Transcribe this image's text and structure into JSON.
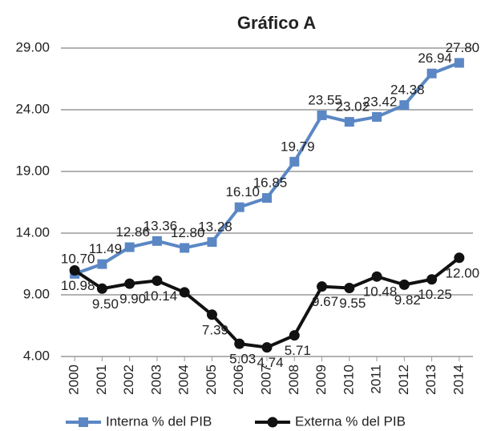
{
  "chart_data": {
    "type": "line",
    "title": "Gráfico A",
    "categories": [
      "2000",
      "2001",
      "2002",
      "2003",
      "2004",
      "2005",
      "2006",
      "2007",
      "2008",
      "2009",
      "2010",
      "2011",
      "2012",
      "2013",
      "2014"
    ],
    "series": [
      {
        "name": "Interna % del PIB",
        "color": "#5b87c4",
        "values": [
          10.7,
          11.49,
          12.86,
          13.36,
          12.8,
          13.28,
          16.1,
          16.85,
          19.79,
          23.55,
          23.02,
          23.42,
          24.38,
          26.94,
          27.8
        ],
        "value_labels": [
          "10.70",
          "11.49",
          "12.86",
          "13.36",
          "12.80",
          "13.28",
          "16.10",
          "16.85",
          "19.79",
          "23.55",
          "23.02",
          "23.42",
          "24.38",
          "26.94",
          "27.80"
        ]
      },
      {
        "name": "Externa % del PIB",
        "color": "#111111",
        "values": [
          10.98,
          9.5,
          9.9,
          10.14,
          9.2,
          7.39,
          5.03,
          4.74,
          5.71,
          9.67,
          9.55,
          10.48,
          9.82,
          10.25,
          12.0
        ],
        "value_labels": [
          "10.98",
          "9.50",
          "9.90",
          "10.14",
          null,
          "7.39",
          "5.03",
          "4.74",
          "5.71",
          "9.67",
          "9.55",
          "10.48",
          "9.82",
          "10.25",
          "12.00"
        ]
      }
    ],
    "ylim": [
      4,
      29
    ],
    "yticks": [
      {
        "value": 4,
        "label": "4.00"
      },
      {
        "value": 9,
        "label": "9.00"
      },
      {
        "value": 14,
        "label": "14.00"
      },
      {
        "value": 19,
        "label": "19.00"
      },
      {
        "value": 24,
        "label": "24.00"
      },
      {
        "value": 29,
        "label": "29.00"
      }
    ],
    "grid": true,
    "legend": "bottom"
  }
}
